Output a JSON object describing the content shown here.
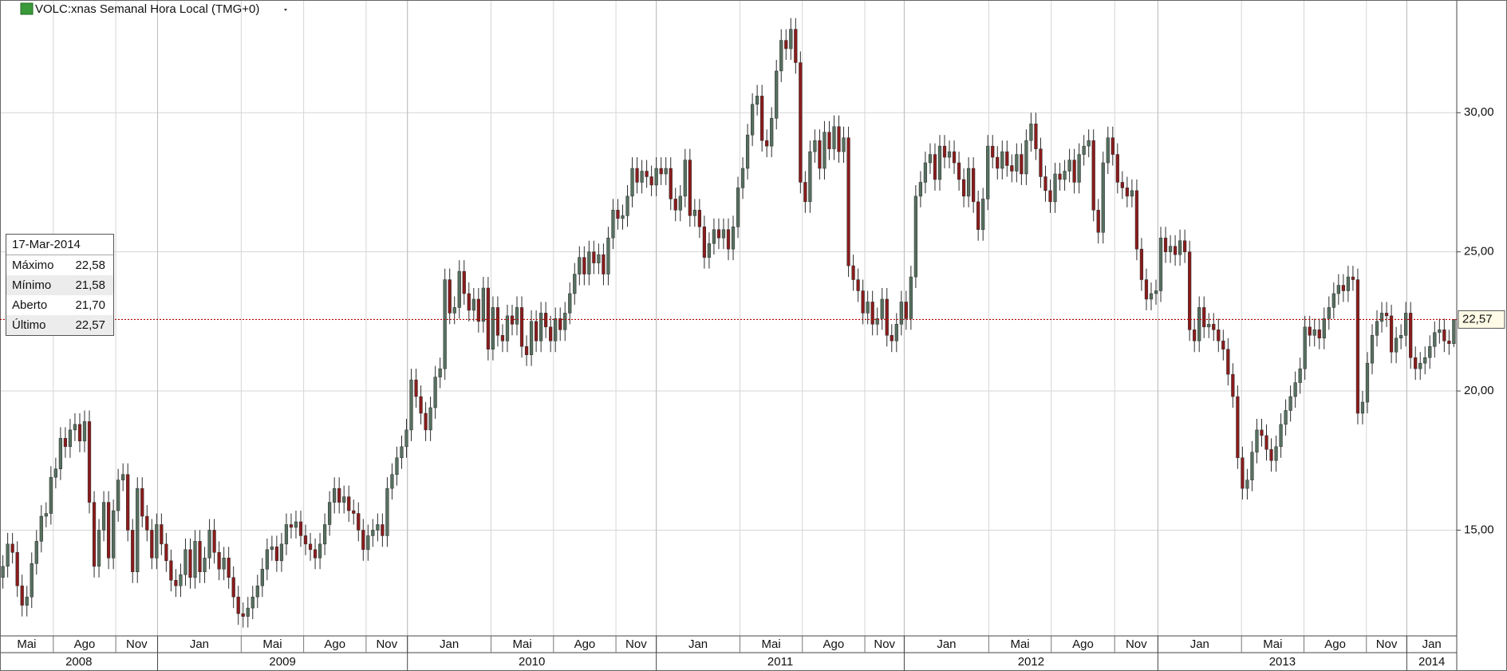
{
  "chart_data": {
    "type": "candlestick",
    "title": "VOLC:xnas Semanal Hora Local (TMG+0)",
    "up_color": "#56705f",
    "down_color": "#8a1c1c",
    "wick_color": "#2b2b2b",
    "open": [
      13.3,
      13.7,
      14.5,
      14.2,
      13.0,
      12.3,
      12.6,
      13.8,
      14.6,
      15.5,
      15.6,
      16.9,
      17.2,
      18.3,
      18.0,
      18.6,
      18.8,
      18.2,
      18.9,
      16.0,
      13.7,
      15.0,
      16.0,
      14.0,
      15.7,
      16.8,
      17.0,
      15.0,
      13.5,
      16.5,
      15.5,
      15.0,
      14.0,
      15.2,
      14.5,
      13.9,
      13.2,
      13.0,
      13.4,
      14.3,
      13.3,
      14.6,
      13.5,
      14.0,
      15.0,
      14.2,
      13.6,
      14.0,
      13.3,
      12.6,
      12.0,
      11.9,
      12.2,
      12.6,
      13.0,
      13.6,
      14.3,
      14.4,
      13.9,
      14.5,
      15.2,
      15.1,
      15.3,
      14.8,
      14.5,
      14.3,
      14.0,
      14.5,
      15.2,
      16.0,
      16.5,
      16.0,
      16.2,
      15.7,
      15.6,
      15.0,
      14.3,
      14.8,
      15.0,
      15.2,
      14.8,
      16.5,
      17.0,
      17.6,
      18.0,
      18.6,
      20.4,
      19.8,
      19.2,
      18.6,
      19.4,
      20.5,
      20.8,
      24.0,
      22.8,
      23.0,
      24.3,
      23.5,
      22.9,
      23.3,
      22.5,
      23.7,
      21.5,
      23.0,
      22.0,
      21.8,
      22.7,
      22.4,
      23.0,
      21.6,
      21.3,
      22.5,
      21.8,
      22.8,
      22.3,
      21.8,
      22.6,
      22.2,
      22.8,
      23.5,
      24.2,
      24.8,
      24.2,
      25.0,
      24.6,
      24.9,
      24.2,
      25.5,
      26.5,
      26.2,
      26.3,
      27.0,
      28.0,
      27.5,
      27.9,
      27.7,
      27.4,
      28.0,
      27.8,
      28.0,
      26.9,
      26.5,
      27.0,
      28.3,
      26.3,
      26.5,
      25.9,
      24.8,
      25.3,
      25.8,
      25.5,
      25.8,
      25.1,
      25.9,
      27.3,
      28.0,
      29.2,
      30.3,
      30.6,
      29.0,
      28.8,
      29.8,
      31.5,
      32.6,
      32.3,
      33.0,
      31.8,
      27.5,
      26.8,
      28.6,
      29.0,
      28.0,
      29.3,
      28.7,
      29.5,
      28.6,
      29.1,
      24.5,
      24.0,
      23.6,
      22.8,
      23.2,
      22.4,
      22.6,
      23.3,
      22.0,
      21.8,
      22.4,
      23.2,
      22.6,
      24.1,
      27.0,
      27.5,
      28.2,
      28.5,
      27.6,
      28.8,
      28.4,
      28.6,
      28.2,
      27.6,
      27.0,
      28.0,
      26.8,
      25.8,
      26.9,
      28.8,
      28.4,
      28.0,
      28.6,
      28.1,
      27.9,
      28.5,
      27.8,
      29.0,
      29.6,
      28.7,
      27.7,
      27.2,
      26.8,
      27.8,
      27.6,
      27.9,
      28.3,
      27.5,
      28.5,
      28.8,
      29.0,
      26.5,
      25.7,
      28.2,
      29.1,
      28.5,
      27.5,
      27.3,
      27.0,
      27.2,
      25.1,
      24.0,
      23.3,
      23.5,
      23.6,
      25.5,
      25.0,
      25.2,
      24.9,
      25.4,
      25.0,
      22.2,
      21.8,
      23.0,
      22.3,
      22.4,
      22.2,
      21.8,
      21.5,
      20.6,
      19.8,
      17.6,
      16.5,
      16.8,
      17.8,
      18.6,
      18.4,
      17.9,
      17.5,
      18.0,
      18.8,
      19.3,
      19.8,
      20.3,
      20.8,
      22.3,
      22.0,
      22.2,
      21.9,
      22.6,
      23.0,
      23.5,
      23.8,
      23.6,
      24.1,
      24.0,
      19.2,
      19.6,
      21.0,
      22.0,
      22.5,
      22.8,
      22.7,
      21.4,
      21.9,
      22.0,
      22.8,
      21.2,
      20.8,
      21.0,
      21.2,
      21.6,
      22.1,
      22.2,
      21.8,
      21.7
    ],
    "high": [
      14.1,
      14.9,
      14.9,
      14.6,
      13.4,
      13.0,
      14.2,
      15.0,
      15.9,
      16.0,
      17.3,
      17.6,
      18.7,
      18.7,
      19.0,
      19.2,
      19.2,
      19.3,
      19.3,
      16.4,
      15.4,
      16.4,
      16.4,
      16.1,
      17.2,
      17.4,
      17.4,
      15.4,
      16.9,
      16.9,
      15.9,
      15.4,
      15.6,
      15.6,
      14.9,
      14.3,
      13.6,
      13.8,
      14.7,
      14.7,
      15.0,
      15.0,
      14.4,
      15.4,
      15.4,
      14.6,
      14.4,
      14.4,
      13.7,
      13.0,
      12.4,
      12.6,
      13.0,
      13.4,
      14.0,
      14.7,
      14.8,
      14.8,
      14.9,
      15.6,
      15.6,
      15.7,
      15.7,
      15.2,
      14.9,
      14.7,
      14.9,
      15.6,
      16.4,
      16.9,
      16.9,
      16.6,
      16.6,
      16.1,
      16.0,
      15.4,
      15.2,
      15.4,
      15.6,
      15.6,
      16.9,
      17.4,
      18.0,
      18.4,
      19.0,
      20.8,
      20.8,
      20.2,
      19.6,
      19.8,
      20.9,
      21.2,
      24.4,
      24.4,
      23.4,
      24.7,
      24.7,
      23.9,
      23.7,
      23.7,
      24.1,
      24.1,
      23.4,
      23.4,
      22.4,
      23.1,
      23.1,
      23.4,
      23.4,
      22.0,
      22.9,
      22.9,
      23.2,
      23.2,
      22.7,
      23.0,
      23.0,
      23.2,
      23.9,
      24.6,
      25.2,
      25.2,
      25.4,
      25.4,
      25.3,
      25.3,
      25.9,
      26.9,
      26.9,
      26.7,
      27.4,
      28.4,
      28.4,
      28.3,
      28.3,
      28.1,
      28.4,
      28.4,
      28.4,
      28.4,
      27.3,
      27.4,
      28.7,
      28.7,
      26.9,
      26.9,
      26.3,
      25.7,
      26.2,
      26.2,
      26.2,
      26.2,
      26.3,
      27.7,
      28.4,
      29.6,
      30.7,
      31.0,
      31.0,
      29.4,
      30.2,
      31.9,
      33.0,
      33.0,
      33.4,
      33.4,
      32.2,
      27.9,
      29.0,
      29.4,
      29.4,
      29.7,
      29.7,
      29.9,
      29.9,
      29.5,
      29.5,
      24.9,
      24.4,
      24.0,
      23.6,
      23.6,
      23.0,
      23.7,
      23.7,
      22.4,
      22.8,
      23.6,
      23.6,
      24.5,
      27.4,
      27.9,
      28.6,
      28.9,
      28.9,
      29.2,
      29.2,
      29.0,
      29.0,
      28.6,
      28.0,
      28.4,
      28.4,
      27.2,
      27.3,
      29.2,
      29.2,
      28.8,
      29.0,
      29.0,
      28.5,
      28.9,
      28.9,
      29.4,
      30.0,
      30.0,
      29.1,
      28.1,
      27.6,
      28.2,
      28.2,
      28.3,
      28.7,
      28.7,
      28.9,
      29.2,
      29.4,
      29.4,
      26.9,
      28.6,
      29.5,
      29.5,
      28.9,
      27.9,
      27.7,
      27.6,
      27.6,
      25.5,
      24.4,
      23.9,
      24.0,
      25.9,
      25.9,
      25.6,
      25.6,
      25.8,
      25.8,
      25.4,
      22.6,
      23.4,
      23.4,
      22.8,
      22.8,
      22.6,
      22.2,
      21.9,
      21.0,
      20.2,
      18.0,
      17.2,
      18.2,
      19.0,
      19.0,
      18.8,
      18.3,
      18.4,
      19.2,
      19.7,
      20.2,
      20.7,
      21.2,
      22.7,
      22.7,
      22.6,
      22.6,
      23.0,
      23.4,
      23.9,
      24.2,
      24.2,
      24.5,
      24.5,
      24.4,
      20.0,
      21.4,
      22.4,
      22.9,
      23.2,
      23.2,
      23.1,
      22.3,
      22.4,
      23.2,
      23.2,
      21.6,
      21.4,
      21.6,
      22.0,
      22.5,
      22.6,
      22.6,
      22.2,
      22.58
    ],
    "low": [
      12.9,
      13.3,
      13.8,
      12.6,
      11.9,
      11.9,
      12.2,
      13.4,
      14.2,
      15.1,
      15.2,
      16.5,
      16.8,
      17.6,
      17.6,
      18.2,
      17.8,
      17.8,
      15.6,
      13.3,
      13.3,
      14.6,
      13.6,
      13.6,
      15.3,
      16.4,
      14.6,
      13.1,
      13.1,
      15.1,
      14.6,
      13.6,
      13.6,
      14.1,
      13.5,
      12.8,
      12.6,
      12.6,
      13.0,
      12.9,
      12.9,
      13.1,
      13.1,
      13.6,
      13.8,
      13.2,
      13.2,
      12.9,
      12.2,
      11.6,
      11.5,
      11.5,
      11.8,
      12.2,
      12.6,
      13.2,
      13.9,
      13.5,
      13.5,
      14.1,
      14.7,
      14.7,
      14.4,
      14.1,
      13.9,
      13.6,
      13.6,
      14.1,
      14.8,
      15.6,
      15.6,
      15.6,
      15.3,
      15.2,
      14.6,
      13.9,
      13.9,
      14.4,
      14.6,
      14.4,
      14.4,
      16.1,
      16.6,
      17.2,
      17.6,
      18.2,
      19.4,
      18.8,
      18.2,
      18.2,
      19.0,
      20.1,
      20.4,
      22.4,
      22.4,
      22.6,
      23.1,
      22.5,
      22.5,
      22.1,
      22.1,
      21.1,
      21.1,
      21.6,
      21.4,
      21.4,
      22.0,
      22.0,
      21.2,
      20.9,
      20.9,
      21.4,
      21.4,
      21.9,
      21.4,
      21.4,
      21.8,
      21.8,
      22.4,
      23.1,
      23.8,
      23.8,
      23.8,
      24.2,
      24.2,
      23.8,
      23.8,
      25.1,
      25.8,
      25.8,
      25.9,
      26.6,
      27.1,
      27.1,
      27.3,
      27.0,
      27.0,
      27.4,
      27.4,
      26.5,
      26.1,
      26.1,
      26.6,
      25.9,
      25.9,
      25.5,
      24.4,
      24.4,
      24.9,
      25.1,
      25.1,
      24.7,
      24.7,
      25.5,
      26.9,
      27.6,
      28.8,
      29.9,
      28.6,
      28.4,
      28.4,
      29.4,
      31.1,
      31.9,
      31.9,
      31.4,
      27.1,
      26.4,
      26.4,
      28.2,
      27.6,
      27.6,
      28.3,
      28.3,
      28.2,
      28.2,
      24.1,
      23.6,
      23.2,
      22.4,
      22.4,
      22.0,
      22.0,
      22.2,
      21.6,
      21.4,
      21.4,
      22.0,
      22.2,
      22.2,
      23.7,
      26.6,
      27.1,
      27.8,
      27.2,
      27.2,
      28.0,
      28.0,
      27.8,
      27.2,
      26.6,
      26.6,
      26.4,
      25.4,
      25.4,
      26.5,
      28.0,
      27.6,
      27.6,
      27.7,
      27.5,
      27.5,
      27.4,
      27.4,
      28.6,
      28.3,
      27.3,
      26.8,
      26.4,
      26.4,
      27.2,
      27.2,
      27.5,
      27.1,
      27.1,
      28.1,
      28.4,
      26.1,
      25.3,
      25.3,
      27.8,
      28.1,
      27.1,
      26.9,
      26.6,
      26.6,
      24.7,
      23.6,
      22.9,
      22.9,
      23.1,
      23.2,
      24.6,
      24.6,
      24.5,
      24.5,
      24.6,
      21.8,
      21.4,
      21.4,
      21.9,
      21.9,
      21.8,
      21.4,
      21.1,
      20.2,
      19.4,
      17.2,
      16.1,
      16.1,
      16.4,
      17.4,
      18.0,
      17.5,
      17.1,
      17.1,
      17.6,
      18.4,
      18.9,
      19.4,
      19.9,
      20.4,
      21.6,
      21.6,
      21.5,
      21.5,
      22.2,
      22.6,
      23.1,
      23.2,
      23.2,
      23.6,
      18.8,
      18.8,
      19.2,
      20.6,
      21.6,
      22.1,
      22.3,
      21.0,
      21.0,
      21.5,
      21.6,
      20.8,
      20.4,
      20.4,
      20.6,
      20.8,
      21.2,
      21.7,
      21.4,
      21.3,
      21.58
    ],
    "close": [
      13.7,
      14.5,
      14.2,
      13.0,
      12.3,
      12.6,
      13.8,
      14.6,
      15.5,
      15.6,
      16.9,
      17.2,
      18.3,
      18.0,
      18.6,
      18.8,
      18.2,
      18.9,
      16.0,
      13.7,
      15.0,
      16.0,
      14.0,
      15.7,
      16.8,
      17.0,
      15.0,
      13.5,
      16.5,
      15.5,
      15.0,
      14.0,
      15.2,
      14.5,
      13.9,
      13.2,
      13.0,
      13.4,
      14.3,
      13.3,
      14.6,
      13.5,
      14.0,
      15.0,
      14.2,
      13.6,
      14.0,
      13.3,
      12.6,
      12.0,
      11.9,
      12.2,
      12.6,
      13.0,
      13.6,
      14.3,
      14.4,
      13.9,
      14.5,
      15.2,
      15.1,
      15.3,
      14.8,
      14.5,
      14.3,
      14.0,
      14.5,
      15.2,
      16.0,
      16.5,
      16.0,
      16.2,
      15.7,
      15.6,
      15.0,
      14.3,
      14.8,
      15.0,
      15.2,
      14.8,
      16.5,
      17.0,
      17.6,
      18.0,
      18.6,
      20.4,
      19.8,
      19.2,
      18.6,
      19.4,
      20.5,
      20.8,
      24.0,
      22.8,
      23.0,
      24.3,
      23.5,
      22.9,
      23.3,
      22.5,
      23.7,
      21.5,
      23.0,
      22.0,
      21.8,
      22.7,
      22.4,
      23.0,
      21.6,
      21.3,
      22.5,
      21.8,
      22.8,
      22.3,
      21.8,
      22.6,
      22.2,
      22.8,
      23.5,
      24.2,
      24.8,
      24.2,
      25.0,
      24.6,
      24.9,
      24.2,
      25.5,
      26.5,
      26.2,
      26.3,
      27.0,
      28.0,
      27.5,
      27.9,
      27.7,
      27.4,
      28.0,
      27.8,
      28.0,
      26.9,
      26.5,
      27.0,
      28.3,
      26.3,
      26.5,
      25.9,
      24.8,
      25.3,
      25.8,
      25.5,
      25.8,
      25.1,
      25.9,
      27.3,
      28.0,
      29.2,
      30.3,
      30.6,
      29.0,
      28.8,
      29.8,
      31.5,
      32.6,
      32.3,
      33.0,
      31.8,
      27.5,
      26.8,
      28.6,
      29.0,
      28.0,
      29.3,
      28.7,
      29.5,
      28.6,
      29.1,
      24.5,
      24.0,
      23.6,
      22.8,
      23.2,
      22.4,
      22.6,
      23.3,
      22.0,
      21.8,
      22.4,
      23.2,
      22.6,
      24.1,
      27.0,
      27.5,
      28.2,
      28.5,
      27.6,
      28.8,
      28.4,
      28.6,
      28.2,
      27.6,
      27.0,
      28.0,
      26.8,
      25.8,
      26.9,
      28.8,
      28.4,
      28.0,
      28.6,
      28.1,
      27.9,
      28.5,
      27.8,
      29.0,
      29.6,
      28.7,
      27.7,
      27.2,
      26.8,
      27.8,
      27.6,
      27.9,
      28.3,
      27.5,
      28.5,
      28.8,
      29.0,
      26.5,
      25.7,
      28.2,
      29.1,
      28.5,
      27.5,
      27.3,
      27.0,
      27.2,
      25.1,
      24.0,
      23.3,
      23.5,
      23.6,
      25.5,
      25.0,
      25.2,
      24.9,
      25.4,
      25.0,
      22.2,
      21.8,
      23.0,
      22.3,
      22.4,
      22.2,
      21.8,
      21.5,
      20.6,
      19.8,
      17.6,
      16.5,
      16.8,
      17.8,
      18.6,
      18.4,
      17.9,
      17.5,
      18.0,
      18.8,
      19.3,
      19.8,
      20.3,
      20.8,
      22.3,
      22.0,
      22.2,
      21.9,
      22.6,
      23.0,
      23.5,
      23.8,
      23.6,
      24.1,
      24.0,
      19.2,
      19.6,
      21.0,
      22.0,
      22.5,
      22.8,
      22.7,
      21.4,
      21.9,
      22.0,
      22.8,
      21.2,
      20.8,
      21.0,
      21.2,
      21.6,
      22.1,
      22.2,
      21.8,
      21.7,
      22.57
    ],
    "xlim": [
      -0.6,
      302.6
    ],
    "xticks": [
      {
        "value": -2.5,
        "label": "Mai"
      },
      {
        "value": 10.5,
        "label": "Ago"
      },
      {
        "value": 23.5,
        "label": "Nov"
      },
      {
        "value": 32.2,
        "label": "Jan"
      },
      {
        "value": 49.6,
        "label": "Mai"
      },
      {
        "value": 62.6,
        "label": "Ago"
      },
      {
        "value": 75.6,
        "label": "Nov"
      },
      {
        "value": 84.2,
        "label": "Jan"
      },
      {
        "value": 101.6,
        "label": "Mai"
      },
      {
        "value": 114.6,
        "label": "Ago"
      },
      {
        "value": 127.6,
        "label": "Nov"
      },
      {
        "value": 136,
        "label": "Jan"
      },
      {
        "value": 153.4,
        "label": "Mai"
      },
      {
        "value": 166.4,
        "label": "Ago"
      },
      {
        "value": 179.4,
        "label": "Nov"
      },
      {
        "value": 187.6,
        "label": "Jan"
      },
      {
        "value": 205.2,
        "label": "Mai"
      },
      {
        "value": 218.2,
        "label": "Ago"
      },
      {
        "value": 231.4,
        "label": "Nov"
      },
      {
        "value": 240.4,
        "label": "Jan"
      },
      {
        "value": 257.8,
        "label": "Mai"
      },
      {
        "value": 270.8,
        "label": "Ago"
      },
      {
        "value": 283.8,
        "label": "Nov"
      },
      {
        "value": 292.2,
        "label": "Jan"
      }
    ],
    "years": [
      {
        "value": -19.8,
        "label": "2008"
      },
      {
        "value": 32.2,
        "label": "2009"
      },
      {
        "value": 84.2,
        "label": "2010"
      },
      {
        "value": 136,
        "label": "2011"
      },
      {
        "value": 187.6,
        "label": "2012"
      },
      {
        "value": 240.4,
        "label": "2013"
      },
      {
        "value": 292.2,
        "label": "2014"
      }
    ],
    "ylim": [
      11.2,
      34.05
    ],
    "yticks": [
      {
        "value": 15,
        "label": "15,00"
      },
      {
        "value": 20,
        "label": "20,00"
      },
      {
        "value": 25,
        "label": "25,00"
      },
      {
        "value": 30,
        "label": "30,00"
      }
    ],
    "grid": true,
    "last_price": {
      "value": 22.57,
      "label": "22,57",
      "color": "#b00000"
    },
    "info_box": {
      "date": "17-Mar-2014",
      "rows": [
        {
          "label": "Máximo",
          "value": "22,58"
        },
        {
          "label": "Mínimo",
          "value": "21,58"
        },
        {
          "label": "Aberto",
          "value": "21,70"
        },
        {
          "label": "Último",
          "value": "22,57"
        }
      ]
    }
  }
}
